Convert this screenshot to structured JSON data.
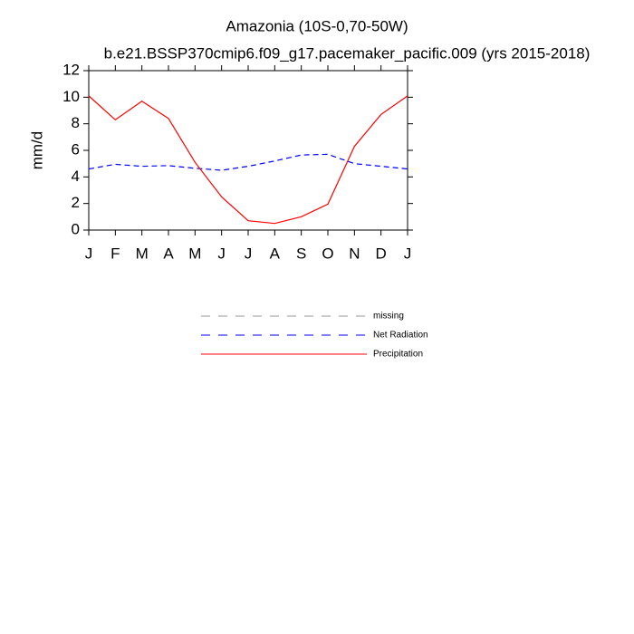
{
  "chart_data": {
    "type": "line",
    "title": "Amazonia (10S-0,70-50W)",
    "subtitle": "b.e21.BSSP370cmip6.f09_g17.pacemaker_pacific.009 (yrs 2015-2018)",
    "y_label": "mm/d",
    "categories": [
      "J",
      "F",
      "M",
      "A",
      "M",
      "J",
      "J",
      "A",
      "S",
      "O",
      "N",
      "D",
      "J"
    ],
    "series": [
      {
        "name": "missing",
        "color": "#999999",
        "dashed": true,
        "values": [
          null,
          null,
          null,
          null,
          null,
          null,
          null,
          null,
          null,
          null,
          null,
          null,
          null
        ]
      },
      {
        "name": "Net Radiation",
        "color": "#0000ff",
        "dashed": true,
        "values": [
          4.6,
          4.95,
          4.8,
          4.85,
          4.65,
          4.5,
          4.8,
          5.2,
          5.65,
          5.7,
          5.0,
          4.8,
          4.6
        ]
      },
      {
        "name": "Precipitation",
        "color": "#ff0000",
        "dashed": false,
        "values": [
          10.1,
          8.3,
          9.7,
          8.4,
          5.1,
          2.5,
          0.7,
          0.5,
          1.0,
          1.95,
          6.3,
          8.7,
          10.1
        ]
      }
    ],
    "ylim": [
      0,
      12
    ],
    "yticks": [
      0,
      2,
      4,
      6,
      8,
      10,
      12
    ],
    "grid": false
  }
}
